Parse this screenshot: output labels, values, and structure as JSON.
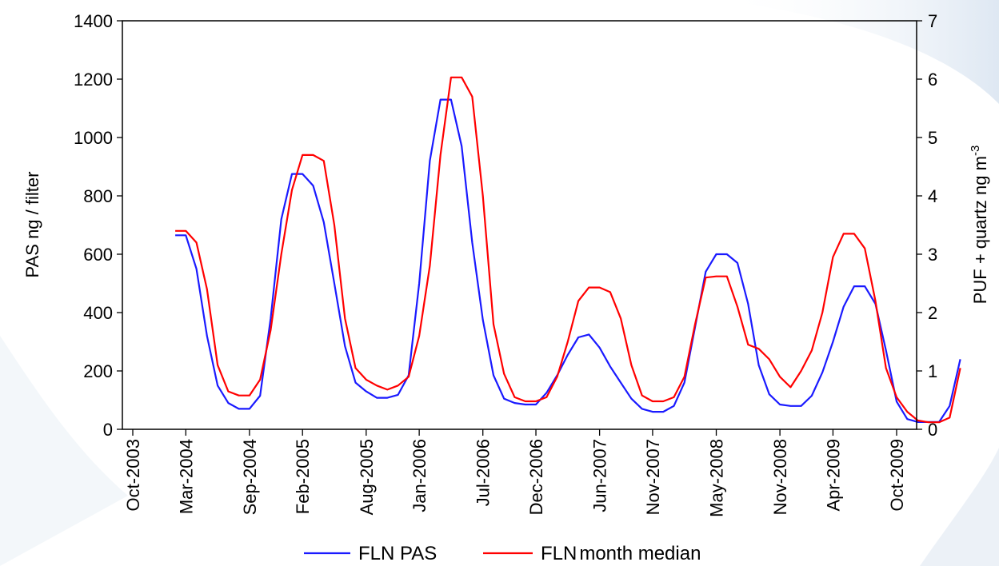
{
  "chart_data": {
    "type": "line",
    "y_left_label": "PAS ng / filter",
    "y_right_label": {
      "prefix": "PUF + quartz ng m",
      "sup": "-3"
    },
    "y_left_ticks": [
      0,
      200,
      400,
      600,
      800,
      1000,
      1200,
      1400
    ],
    "y_right_ticks": [
      0,
      1,
      2,
      3,
      4,
      5,
      6,
      7
    ],
    "ylim_left": [
      0,
      1400
    ],
    "ylim_right": [
      0,
      7
    ],
    "x_ticks": [
      "Oct-2003",
      "Mar-2004",
      "Sep-2004",
      "Feb-2005",
      "Aug-2005",
      "Jan-2006",
      "Jul-2006",
      "Dec-2006",
      "Jun-2007",
      "Nov-2007",
      "May-2008",
      "Nov-2008",
      "Apr-2009",
      "Oct-2009"
    ],
    "x_start": "Oct-2003",
    "x_end": "Oct-2009",
    "grid": false,
    "legend_position": "bottom",
    "colors": {
      "pas": "#1a1aff",
      "median": "#ff0000",
      "background": "#ffffff",
      "accent": "#c8d8ea"
    },
    "series": [
      {
        "name": "FLN PAS",
        "axis": "left",
        "color": "#1a1aff",
        "points": [
          [
            "Feb-2004",
            665
          ],
          [
            "Mar-2004",
            665
          ],
          [
            "Apr-2004",
            550
          ],
          [
            "May-2004",
            320
          ],
          [
            "Jun-2004",
            150
          ],
          [
            "Jul-2004",
            90
          ],
          [
            "Aug-2004",
            70
          ],
          [
            "Sep-2004",
            70
          ],
          [
            "Oct-2004",
            115
          ],
          [
            "Nov-2004",
            380
          ],
          [
            "Dec-2004",
            720
          ],
          [
            "Jan-2005",
            875
          ],
          [
            "Feb-2005",
            875
          ],
          [
            "Mar-2005",
            835
          ],
          [
            "Apr-2005",
            710
          ],
          [
            "May-2005",
            500
          ],
          [
            "Jun-2005",
            285
          ],
          [
            "Jul-2005",
            160
          ],
          [
            "Aug-2005",
            130
          ],
          [
            "Sep-2005",
            108
          ],
          [
            "Oct-2005",
            108
          ],
          [
            "Nov-2005",
            118
          ],
          [
            "Dec-2005",
            185
          ],
          [
            "Jan-2006",
            500
          ],
          [
            "Feb-2006",
            920
          ],
          [
            "Mar-2006",
            1130
          ],
          [
            "Apr-2006",
            1130
          ],
          [
            "May-2006",
            970
          ],
          [
            "Jun-2006",
            640
          ],
          [
            "Jul-2006",
            375
          ],
          [
            "Aug-2006",
            185
          ],
          [
            "Sep-2006",
            105
          ],
          [
            "Oct-2006",
            90
          ],
          [
            "Nov-2006",
            85
          ],
          [
            "Dec-2006",
            85
          ],
          [
            "Jan-2007",
            125
          ],
          [
            "Feb-2007",
            185
          ],
          [
            "Mar-2007",
            255
          ],
          [
            "Apr-2007",
            315
          ],
          [
            "May-2007",
            325
          ],
          [
            "Jun-2007",
            280
          ],
          [
            "Jul-2007",
            215
          ],
          [
            "Aug-2007",
            160
          ],
          [
            "Sep-2007",
            105
          ],
          [
            "Oct-2007",
            70
          ],
          [
            "Nov-2007",
            60
          ],
          [
            "Dec-2007",
            60
          ],
          [
            "Jan-2008",
            80
          ],
          [
            "Feb-2008",
            160
          ],
          [
            "Mar-2008",
            350
          ],
          [
            "Apr-2008",
            540
          ],
          [
            "May-2008",
            600
          ],
          [
            "Jun-2008",
            600
          ],
          [
            "Jul-2008",
            570
          ],
          [
            "Aug-2008",
            430
          ],
          [
            "Sep-2008",
            220
          ],
          [
            "Oct-2008",
            120
          ],
          [
            "Nov-2008",
            85
          ],
          [
            "Dec-2008",
            80
          ],
          [
            "Jan-2009",
            80
          ],
          [
            "Feb-2009",
            115
          ],
          [
            "Mar-2009",
            195
          ],
          [
            "Apr-2009",
            300
          ],
          [
            "May-2009",
            420
          ],
          [
            "Jun-2009",
            490
          ],
          [
            "Jul-2009",
            490
          ],
          [
            "Aug-2009",
            430
          ],
          [
            "Sep-2009",
            270
          ],
          [
            "Oct-2009",
            95
          ],
          [
            "Nov-2009",
            35
          ],
          [
            "Dec-2009",
            25
          ],
          [
            "Jan-2010",
            25
          ],
          [
            "Feb-2010",
            25
          ],
          [
            "Mar-2010",
            80
          ],
          [
            "Apr-2010",
            240
          ]
        ]
      },
      {
        "name": "FLNmonth median",
        "axis": "right",
        "color": "#ff0000",
        "points": [
          [
            "Feb-2004",
            3.4
          ],
          [
            "Mar-2004",
            3.4
          ],
          [
            "Apr-2004",
            3.2
          ],
          [
            "May-2004",
            2.4
          ],
          [
            "Jun-2004",
            1.1
          ],
          [
            "Jul-2004",
            0.65
          ],
          [
            "Aug-2004",
            0.58
          ],
          [
            "Sep-2004",
            0.58
          ],
          [
            "Oct-2004",
            0.85
          ],
          [
            "Nov-2004",
            1.7
          ],
          [
            "Dec-2004",
            3.0
          ],
          [
            "Jan-2005",
            4.1
          ],
          [
            "Feb-2005",
            4.7
          ],
          [
            "Mar-2005",
            4.7
          ],
          [
            "Apr-2005",
            4.6
          ],
          [
            "May-2005",
            3.5
          ],
          [
            "Jun-2005",
            1.9
          ],
          [
            "Jul-2005",
            1.05
          ],
          [
            "Aug-2005",
            0.85
          ],
          [
            "Sep-2005",
            0.75
          ],
          [
            "Oct-2005",
            0.68
          ],
          [
            "Nov-2005",
            0.75
          ],
          [
            "Dec-2005",
            0.9
          ],
          [
            "Jan-2006",
            1.6
          ],
          [
            "Feb-2006",
            2.8
          ],
          [
            "Mar-2006",
            4.7
          ],
          [
            "Apr-2006",
            6.03
          ],
          [
            "May-2006",
            6.03
          ],
          [
            "Jun-2006",
            5.7
          ],
          [
            "Jul-2006",
            4.0
          ],
          [
            "Aug-2006",
            1.8
          ],
          [
            "Sep-2006",
            0.95
          ],
          [
            "Oct-2006",
            0.55
          ],
          [
            "Nov-2006",
            0.48
          ],
          [
            "Dec-2006",
            0.48
          ],
          [
            "Jan-2007",
            0.55
          ],
          [
            "Feb-2007",
            0.9
          ],
          [
            "Mar-2007",
            1.5
          ],
          [
            "Apr-2007",
            2.2
          ],
          [
            "May-2007",
            2.43
          ],
          [
            "Jun-2007",
            2.43
          ],
          [
            "Jul-2007",
            2.35
          ],
          [
            "Aug-2007",
            1.9
          ],
          [
            "Sep-2007",
            1.1
          ],
          [
            "Oct-2007",
            0.58
          ],
          [
            "Nov-2007",
            0.48
          ],
          [
            "Dec-2007",
            0.48
          ],
          [
            "Jan-2008",
            0.55
          ],
          [
            "Feb-2008",
            0.9
          ],
          [
            "Mar-2008",
            1.8
          ],
          [
            "Apr-2008",
            2.6
          ],
          [
            "May-2008",
            2.62
          ],
          [
            "Jun-2008",
            2.62
          ],
          [
            "Jul-2008",
            2.1
          ],
          [
            "Aug-2008",
            1.45
          ],
          [
            "Sep-2008",
            1.38
          ],
          [
            "Oct-2008",
            1.2
          ],
          [
            "Nov-2008",
            0.9
          ],
          [
            "Dec-2008",
            0.72
          ],
          [
            "Jan-2009",
            1.0
          ],
          [
            "Feb-2009",
            1.35
          ],
          [
            "Mar-2009",
            2.0
          ],
          [
            "Apr-2009",
            2.95
          ],
          [
            "May-2009",
            3.35
          ],
          [
            "Jun-2009",
            3.35
          ],
          [
            "Jul-2009",
            3.1
          ],
          [
            "Aug-2009",
            2.2
          ],
          [
            "Sep-2009",
            1.05
          ],
          [
            "Oct-2009",
            0.55
          ],
          [
            "Nov-2009",
            0.3
          ],
          [
            "Dec-2009",
            0.15
          ],
          [
            "Jan-2010",
            0.12
          ],
          [
            "Feb-2010",
            0.12
          ],
          [
            "Mar-2010",
            0.2
          ],
          [
            "Apr-2010",
            1.05
          ]
        ]
      }
    ]
  }
}
